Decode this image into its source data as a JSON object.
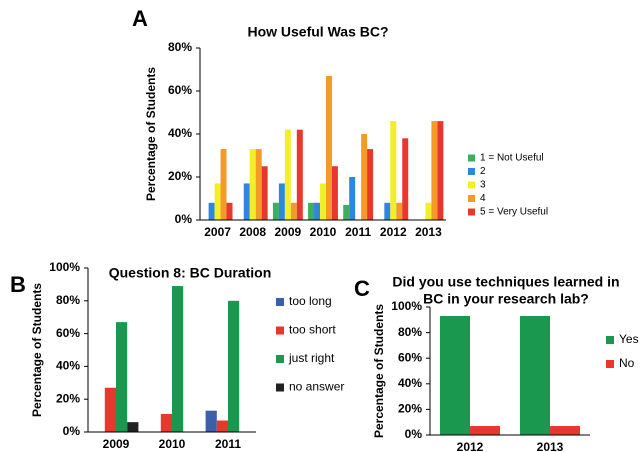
{
  "chart_data": [
    {
      "type": "bar",
      "panel": "A",
      "title": "How Useful Was BC?",
      "ylabel": "Percentage of Students",
      "categories": [
        "2007",
        "2008",
        "2009",
        "2010",
        "2011",
        "2012",
        "2013"
      ],
      "series": [
        {
          "name": "1 = Not Useful",
          "color": "#3dae5c",
          "values": [
            0,
            0,
            8,
            8,
            7,
            0,
            0
          ]
        },
        {
          "name": "2",
          "color": "#2e86de",
          "values": [
            8,
            17,
            17,
            8,
            20,
            8,
            0
          ]
        },
        {
          "name": "3",
          "color": "#f2ef2a",
          "values": [
            17,
            33,
            42,
            17,
            0,
            46,
            8
          ]
        },
        {
          "name": "4",
          "color": "#f39a29",
          "values": [
            33,
            33,
            8,
            67,
            40,
            8,
            46
          ]
        },
        {
          "name": "5 = Very Useful",
          "color": "#e8372c",
          "values": [
            8,
            25,
            42,
            25,
            33,
            38,
            46
          ]
        }
      ],
      "ylim": [
        0,
        80
      ],
      "yticks": [
        {
          "value": 0,
          "label": "0%"
        },
        {
          "value": 20,
          "label": "20%"
        },
        {
          "value": 40,
          "label": "40%"
        },
        {
          "value": 60,
          "label": "60%"
        },
        {
          "value": 80,
          "label": "80%"
        }
      ],
      "grid": false,
      "legend": "right"
    },
    {
      "type": "bar",
      "panel": "B",
      "title": "Question 8: BC Duration",
      "ylabel": "Percentage of Students",
      "categories": [
        "2009",
        "2010",
        "2011"
      ],
      "series": [
        {
          "name": "too long",
          "color": "#3d5ea8",
          "values": [
            0,
            0,
            13
          ]
        },
        {
          "name": "too short",
          "color": "#e8372c",
          "values": [
            27,
            11,
            7
          ]
        },
        {
          "name": "just right",
          "color": "#1a9850",
          "values": [
            67,
            89,
            80
          ]
        },
        {
          "name": "no answer",
          "color": "#222222",
          "values": [
            6,
            0,
            0
          ]
        }
      ],
      "ylim": [
        0,
        100
      ],
      "yticks": [
        {
          "value": 0,
          "label": "0%"
        },
        {
          "value": 20,
          "label": "20%"
        },
        {
          "value": 40,
          "label": "40%"
        },
        {
          "value": 60,
          "label": "60%"
        },
        {
          "value": 80,
          "label": "80%"
        },
        {
          "value": 100,
          "label": "100%"
        }
      ],
      "grid": false,
      "legend": "right"
    },
    {
      "type": "bar",
      "panel": "C",
      "title": [
        "Did you use techniques learned in",
        "BC in your research lab?"
      ],
      "ylabel": "Percentage of Students",
      "categories": [
        "2012",
        "2013"
      ],
      "series": [
        {
          "name": "Yes",
          "color": "#1a9850",
          "values": [
            93,
            93
          ]
        },
        {
          "name": "No",
          "color": "#e8372c",
          "values": [
            7,
            7
          ]
        }
      ],
      "ylim": [
        0,
        100
      ],
      "yticks": [
        {
          "value": 0,
          "label": "0%"
        },
        {
          "value": 20,
          "label": "20%"
        },
        {
          "value": 40,
          "label": "40%"
        },
        {
          "value": 60,
          "label": "60%"
        },
        {
          "value": 80,
          "label": "80%"
        },
        {
          "value": 100,
          "label": "100%"
        }
      ],
      "grid": false,
      "legend": "right"
    }
  ]
}
